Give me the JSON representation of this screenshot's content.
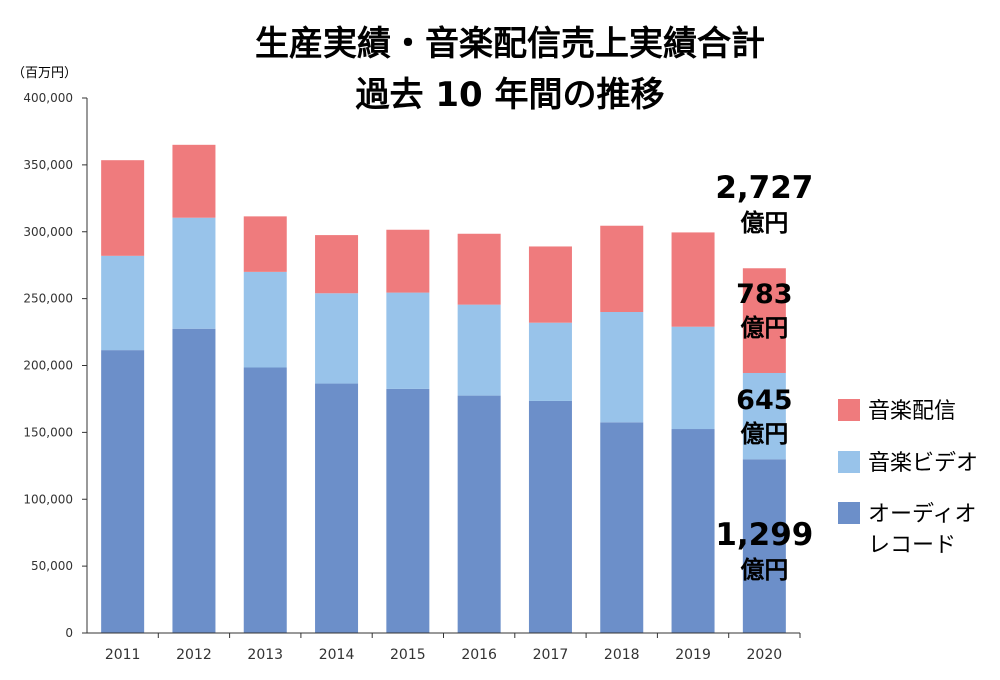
{
  "chart_data": {
    "type": "bar",
    "stacked": true,
    "title": [
      "生産実績・音楽配信売上実績合計",
      "過去 10 年間の推移"
    ],
    "unit_label": "（百万円）",
    "categories": [
      "2011",
      "2012",
      "2013",
      "2014",
      "2015",
      "2016",
      "2017",
      "2018",
      "2019",
      "2020"
    ],
    "series": [
      {
        "name": "オーディオレコード",
        "legend": [
          "オーディオ",
          "レコード"
        ],
        "color": "#6c8fc9",
        "values": [
          211500,
          227500,
          198500,
          186500,
          182500,
          177500,
          173500,
          157500,
          152500,
          129900
        ]
      },
      {
        "name": "音楽ビデオ",
        "legend": [
          "音楽ビデオ"
        ],
        "color": "#98c3ea",
        "values": [
          70500,
          83000,
          71500,
          67500,
          72000,
          68000,
          58500,
          82500,
          76500,
          64500
        ]
      },
      {
        "name": "音楽配信",
        "legend": [
          "音楽配信"
        ],
        "color": "#ef7b7d",
        "values": [
          71500,
          54500,
          41500,
          43500,
          47000,
          53000,
          57000,
          64500,
          70500,
          78300
        ]
      }
    ],
    "ylim": [
      0,
      400000
    ],
    "yticks": [
      "0",
      "50,000",
      "100,000",
      "150,000",
      "200,000",
      "250,000",
      "300,000",
      "350,000",
      "400,000"
    ],
    "grid": false,
    "legend_position": "right",
    "annotations": {
      "total": [
        "2,727",
        "億円"
      ],
      "distribution": [
        "783",
        "億円"
      ],
      "video": [
        "645",
        "億円"
      ],
      "audio": [
        "1,299",
        "億円"
      ]
    }
  }
}
